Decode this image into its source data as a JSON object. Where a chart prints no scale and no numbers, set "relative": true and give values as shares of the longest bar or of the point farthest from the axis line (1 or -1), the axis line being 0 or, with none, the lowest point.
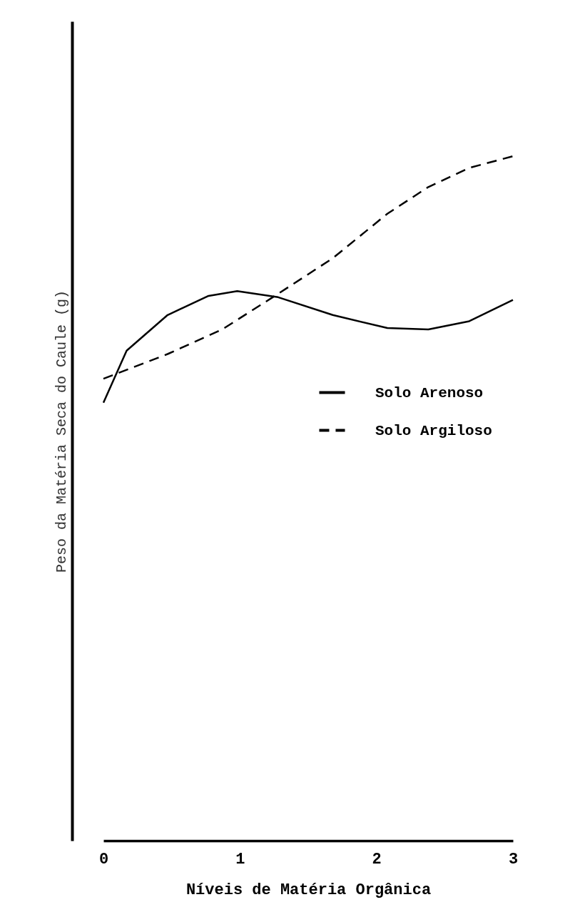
{
  "chart_data": {
    "type": "line",
    "relative": true,
    "xlabel": "Níveis de Matéria Orgânica",
    "ylabel": "Peso da Matéria Seca do Caule (g)",
    "xlim": [
      0,
      3
    ],
    "xticks": [
      0,
      1,
      2,
      3
    ],
    "legend": "right",
    "grid": false,
    "series": [
      {
        "name": "Solo Arenoso",
        "color": "#000000",
        "line_style": "solid",
        "x": [
          0,
          0.17,
          0.47,
          0.77,
          0.98,
          1.28,
          1.68,
          2.08,
          2.38,
          2.68,
          3
        ],
        "values": [
          0.64,
          0.716,
          0.768,
          0.796,
          0.803,
          0.794,
          0.768,
          0.749,
          0.747,
          0.759,
          0.79
        ]
      },
      {
        "name": "Solo Argiloso",
        "color": "#000000",
        "line_style": "dashed",
        "x": [
          0,
          0.47,
          0.87,
          1.28,
          1.68,
          2.08,
          2.38,
          2.68,
          3
        ],
        "values": [
          0.675,
          0.711,
          0.747,
          0.799,
          0.851,
          0.916,
          0.955,
          0.983,
          1
        ]
      }
    ]
  }
}
